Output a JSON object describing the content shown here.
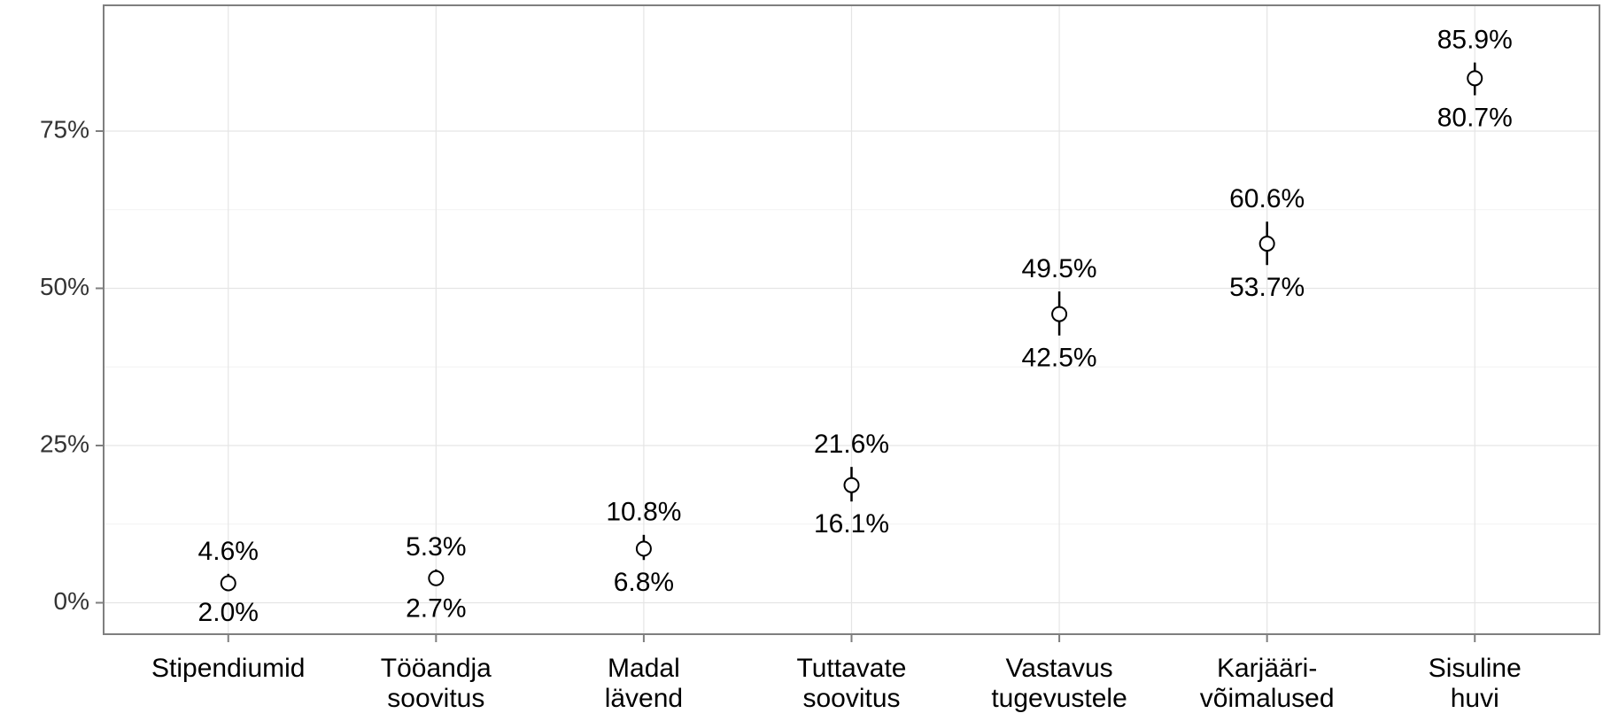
{
  "chart_data": {
    "type": "pointrange",
    "categories": [
      "Stipendiumid",
      "Tööandja\nsoovitus",
      "Madal\nlävend",
      "Tuttavate\nsoovitus",
      "Vastavus\ntugevustele",
      "Karjääri-\nvõimalused",
      "Sisuline\nhuvi"
    ],
    "values": [
      3.1,
      3.9,
      8.6,
      18.7,
      45.9,
      57.1,
      83.4
    ],
    "lower": [
      2.0,
      2.7,
      6.8,
      16.1,
      42.5,
      53.7,
      80.7
    ],
    "lower_labels": [
      "2.0%",
      "2.7%",
      "6.8%",
      "16.1%",
      "42.5%",
      "53.7%",
      "80.7%"
    ],
    "upper": [
      4.6,
      5.3,
      10.8,
      21.6,
      49.5,
      60.6,
      85.9
    ],
    "upper_labels": [
      "4.6%",
      "5.3%",
      "10.8%",
      "21.6%",
      "49.5%",
      "60.6%",
      "85.9%"
    ],
    "ylim": [
      -5,
      95
    ],
    "yticks": [
      {
        "value": 0,
        "label": "0%"
      },
      {
        "value": 25,
        "label": "25%"
      },
      {
        "value": 50,
        "label": "50%"
      },
      {
        "value": 75,
        "label": "75%"
      }
    ],
    "grid": true,
    "color": "#000000"
  }
}
